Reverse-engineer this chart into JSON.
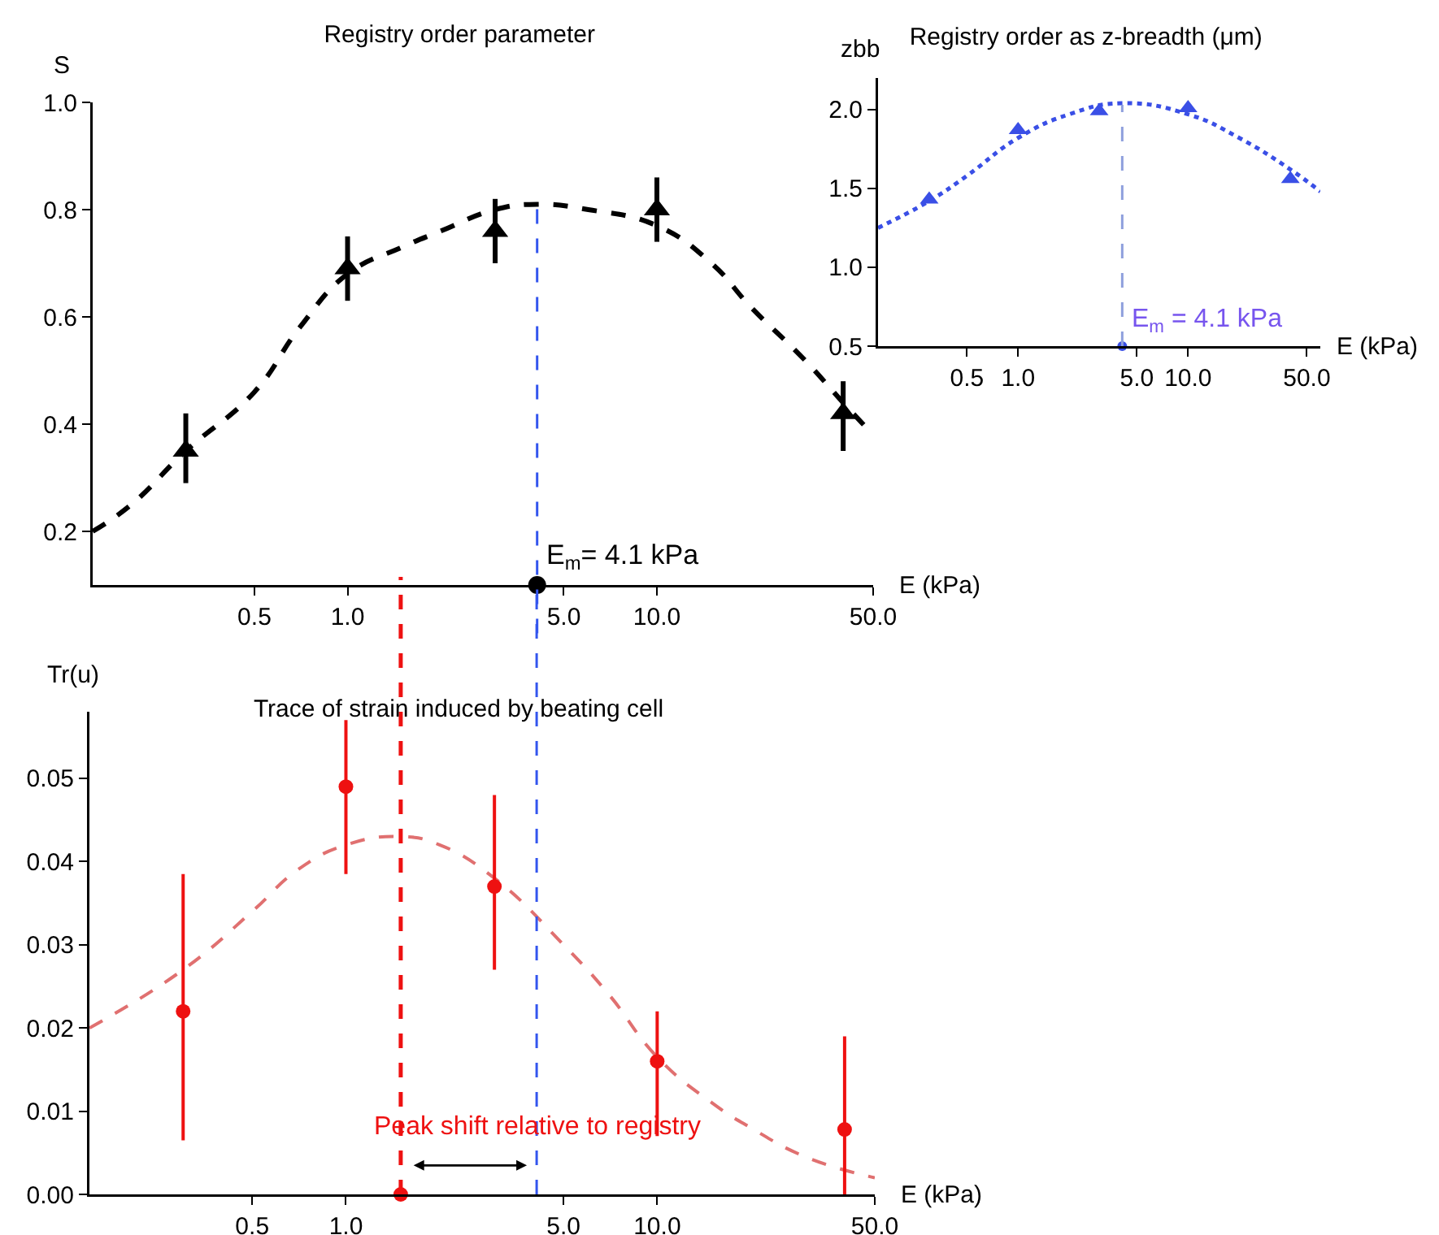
{
  "chart_data": [
    {
      "type": "scatter",
      "title": "Registry order parameter",
      "xlabel": "E (kPa)",
      "ylabel": "S",
      "log": "x",
      "grid": false,
      "xlim": [
        0.15,
        50
      ],
      "xticks": [
        {
          "value": 0.5,
          "label": "0.5"
        },
        {
          "value": 1,
          "label": "1.0"
        },
        {
          "value": 5,
          "label": "5.0"
        },
        {
          "value": 10,
          "label": "10.0"
        },
        {
          "value": 50,
          "label": "50.0"
        }
      ],
      "ylim": [
        0.1,
        1.0
      ],
      "yticks": [
        0.2,
        0.4,
        0.6,
        0.8,
        {
          "value": 1,
          "label": "1.0"
        }
      ],
      "series": [
        {
          "color": "#000000",
          "marker": "triangle",
          "x": [
            0.3,
            1,
            3,
            10,
            40
          ],
          "values": [
            0.35,
            0.69,
            0.76,
            0.8,
            0.42
          ],
          "errors": [
            [
              0.29,
              0.42
            ],
            [
              0.63,
              0.75
            ],
            [
              0.7,
              0.82
            ],
            [
              0.74,
              0.86
            ],
            [
              0.35,
              0.48
            ]
          ]
        },
        {
          "type": "line",
          "color": "#000000",
          "line_style": "dashed",
          "marker": "none",
          "x": [
            0.15,
            0.2,
            0.3,
            0.5,
            0.7,
            1,
            1.5,
            2,
            3,
            4.1,
            6,
            10,
            15,
            20,
            30,
            40,
            50
          ],
          "values": [
            0.2,
            0.25,
            0.35,
            0.46,
            0.58,
            0.68,
            0.73,
            0.76,
            0.8,
            0.81,
            0.8,
            0.77,
            0.7,
            0.62,
            0.52,
            0.44,
            0.38
          ]
        },
        {
          "color": "#000000",
          "marker": "circle",
          "x": [
            4.1
          ],
          "values": [
            0.1
          ]
        }
      ],
      "ref_lines": [
        {
          "axis": "x",
          "value": 4.1,
          "color": "#3355ee",
          "line_style": "dashed"
        }
      ],
      "annotations": [
        {
          "text": "E$_{m}$= 4.1 kPa",
          "x": 4.1,
          "y": 0.1
        }
      ]
    },
    {
      "type": "scatter",
      "title": "Registry order as z-breadth (μm)",
      "xlabel": "E (kPa)",
      "ylabel": "zbb",
      "log": "x",
      "grid": false,
      "xlim": [
        0.15,
        60
      ],
      "xticks": [
        {
          "value": 0.5,
          "label": "0.5"
        },
        {
          "value": 1,
          "label": "1.0"
        },
        {
          "value": 5,
          "label": "5.0"
        },
        {
          "value": 10,
          "label": "10.0"
        },
        {
          "value": 50,
          "label": "50.0"
        }
      ],
      "ylim": [
        0.5,
        2.2
      ],
      "yticks": [
        0.5,
        {
          "value": 1,
          "label": "1.0"
        },
        1.5,
        {
          "value": 2,
          "label": "2.0"
        }
      ],
      "series": [
        {
          "color": "#3a4fe6",
          "marker": "triangle",
          "x": [
            0.3,
            1,
            3,
            10,
            40
          ],
          "values": [
            1.43,
            1.87,
            1.99,
            2.01,
            1.56
          ]
        },
        {
          "type": "line",
          "color": "#3a4fe6",
          "line_style": "dotted",
          "marker": "none",
          "x": [
            0.15,
            0.3,
            0.5,
            1,
            2,
            4.1,
            10,
            20,
            40,
            60
          ],
          "values": [
            1.25,
            1.42,
            1.58,
            1.82,
            1.97,
            2.04,
            1.97,
            1.82,
            1.62,
            1.48
          ]
        },
        {
          "color": "#3a4fe6",
          "marker": "circle",
          "x": [
            4.1
          ],
          "values": [
            0.5
          ]
        }
      ],
      "ref_lines": [
        {
          "axis": "x",
          "value": 4.1,
          "color": "#8fa0dd",
          "line_style": "dashed"
        }
      ],
      "annotations": [
        {
          "text": "E$_{m}$ = 4.1 kPa",
          "x": 4.1,
          "y": 0.5
        }
      ]
    },
    {
      "type": "scatter",
      "title": "Trace of strain induced by beating cell",
      "xlabel": "E (kPa)",
      "ylabel": "Tr(u)",
      "log": "x",
      "grid": false,
      "xlim": [
        0.15,
        50
      ],
      "xticks": [
        {
          "value": 0.5,
          "label": "0.5"
        },
        {
          "value": 1,
          "label": "1.0"
        },
        {
          "value": 5,
          "label": "5.0"
        },
        {
          "value": 10,
          "label": "10.0"
        },
        {
          "value": 50,
          "label": "50.0"
        }
      ],
      "ylim": [
        0,
        0.058
      ],
      "yticks": [
        {
          "value": 0,
          "label": "0.00"
        },
        {
          "value": 0.01,
          "label": "0.01"
        },
        {
          "value": 0.02,
          "label": "0.02"
        },
        {
          "value": 0.03,
          "label": "0.03"
        },
        {
          "value": 0.04,
          "label": "0.04"
        },
        {
          "value": 0.05,
          "label": "0.05"
        }
      ],
      "series": [
        {
          "color": "#ee1111",
          "marker": "circle",
          "x": [
            0.3,
            1,
            3,
            10,
            40
          ],
          "values": [
            0.022,
            0.049,
            0.037,
            0.016,
            0.0078
          ],
          "errors": [
            [
              0.0065,
              0.0385
            ],
            [
              0.0385,
              0.057
            ],
            [
              0.027,
              0.048
            ],
            [
              0.007,
              0.022
            ],
            [
              0,
              0.019
            ]
          ]
        },
        {
          "type": "line",
          "color": "#e07070",
          "line_style": "dashed",
          "marker": "none",
          "x": [
            0.15,
            0.3,
            0.5,
            0.7,
            1,
            1.5,
            2,
            3,
            5,
            7,
            10,
            15,
            20,
            30,
            50
          ],
          "values": [
            0.02,
            0.027,
            0.034,
            0.039,
            0.042,
            0.043,
            0.042,
            0.038,
            0.03,
            0.024,
            0.0165,
            0.011,
            0.008,
            0.0045,
            0.002
          ]
        },
        {
          "color": "#ee1111",
          "marker": "circle",
          "x": [
            1.5
          ],
          "values": [
            0
          ]
        }
      ],
      "ref_lines": [
        {
          "axis": "x",
          "value": 1.5,
          "color": "#ee1111",
          "line_style": "dashed"
        },
        {
          "axis": "x",
          "value": 4.1,
          "color": "#3355ee",
          "line_style": "dashed"
        }
      ],
      "annotations": [
        "Peak shift relative to registry"
      ]
    }
  ]
}
